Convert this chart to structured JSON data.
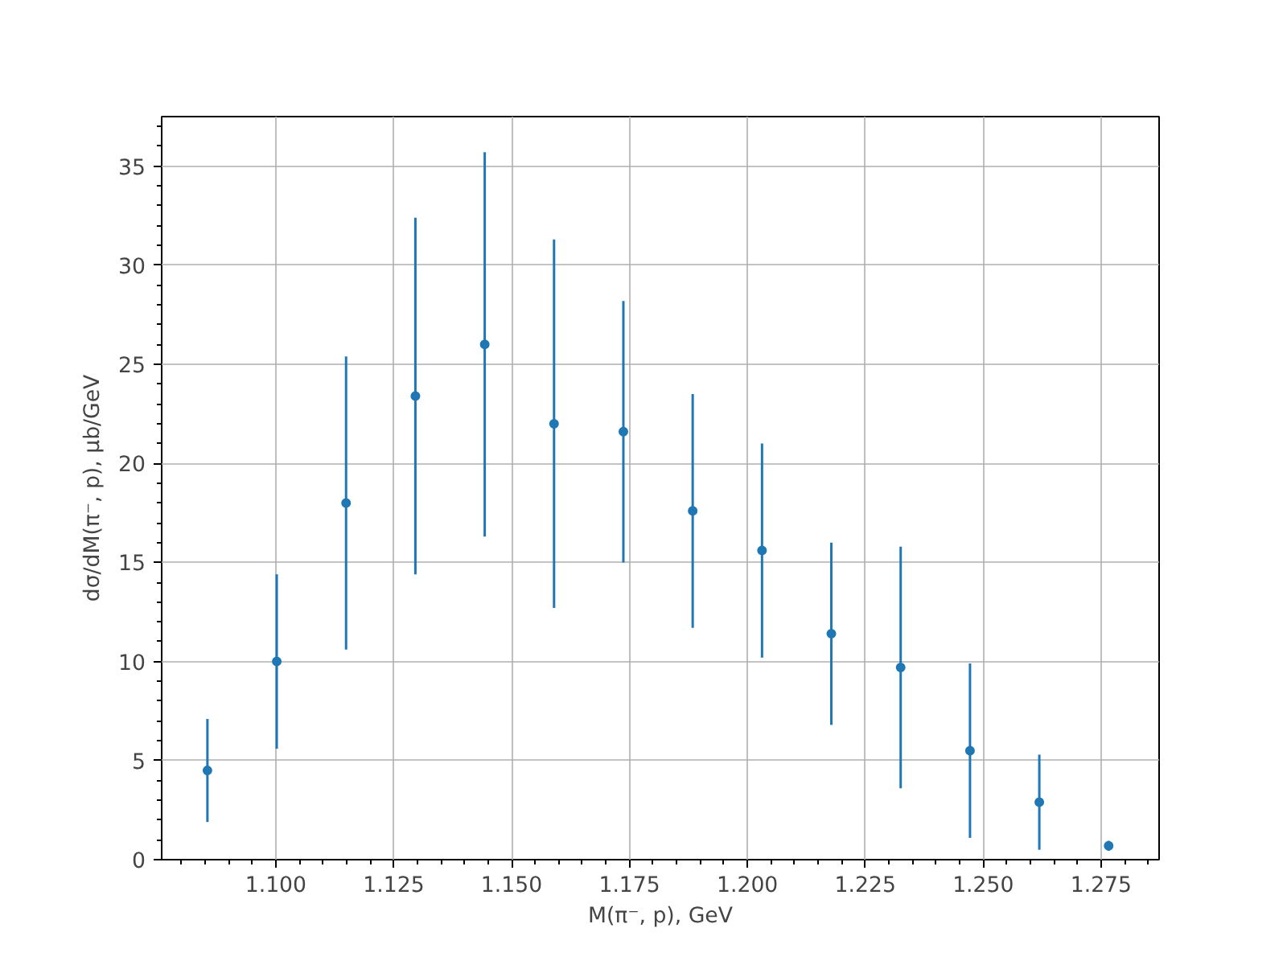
{
  "chart_data": {
    "type": "scatter",
    "xlabel": "M(π⁻, p), GeV",
    "ylabel": "dσ/dM(π⁻, p), μb/GeV",
    "x": [
      1.0855,
      1.1002,
      1.1149,
      1.1296,
      1.1443,
      1.159,
      1.1737,
      1.1884,
      1.2031,
      1.2178,
      1.2325,
      1.2472,
      1.2619,
      1.2766
    ],
    "series": [
      {
        "color": "#1f77b4",
        "values": [
          4.5,
          10.0,
          18.0,
          23.4,
          26.0,
          22.0,
          21.6,
          17.6,
          15.6,
          11.4,
          9.7,
          5.5,
          2.9,
          0.7
        ],
        "errors": [
          2.6,
          4.4,
          7.4,
          9.0,
          9.7,
          9.3,
          6.6,
          5.9,
          5.4,
          4.6,
          6.1,
          4.4,
          2.4,
          0.25
        ]
      }
    ],
    "xlim": [
      1.0758,
      1.2873
    ],
    "ylim": [
      0,
      37.5
    ],
    "xticks": [
      {
        "value": 1.1,
        "label": "1.100"
      },
      {
        "value": 1.125,
        "label": "1.125"
      },
      {
        "value": 1.15,
        "label": "1.150"
      },
      {
        "value": 1.175,
        "label": "1.175"
      },
      {
        "value": 1.2,
        "label": "1.200"
      },
      {
        "value": 1.225,
        "label": "1.225"
      },
      {
        "value": 1.25,
        "label": "1.250"
      },
      {
        "value": 1.275,
        "label": "1.275"
      }
    ],
    "yticks": [
      0,
      5,
      10,
      15,
      20,
      25,
      30,
      35
    ],
    "grid": true,
    "marker": "circle"
  }
}
